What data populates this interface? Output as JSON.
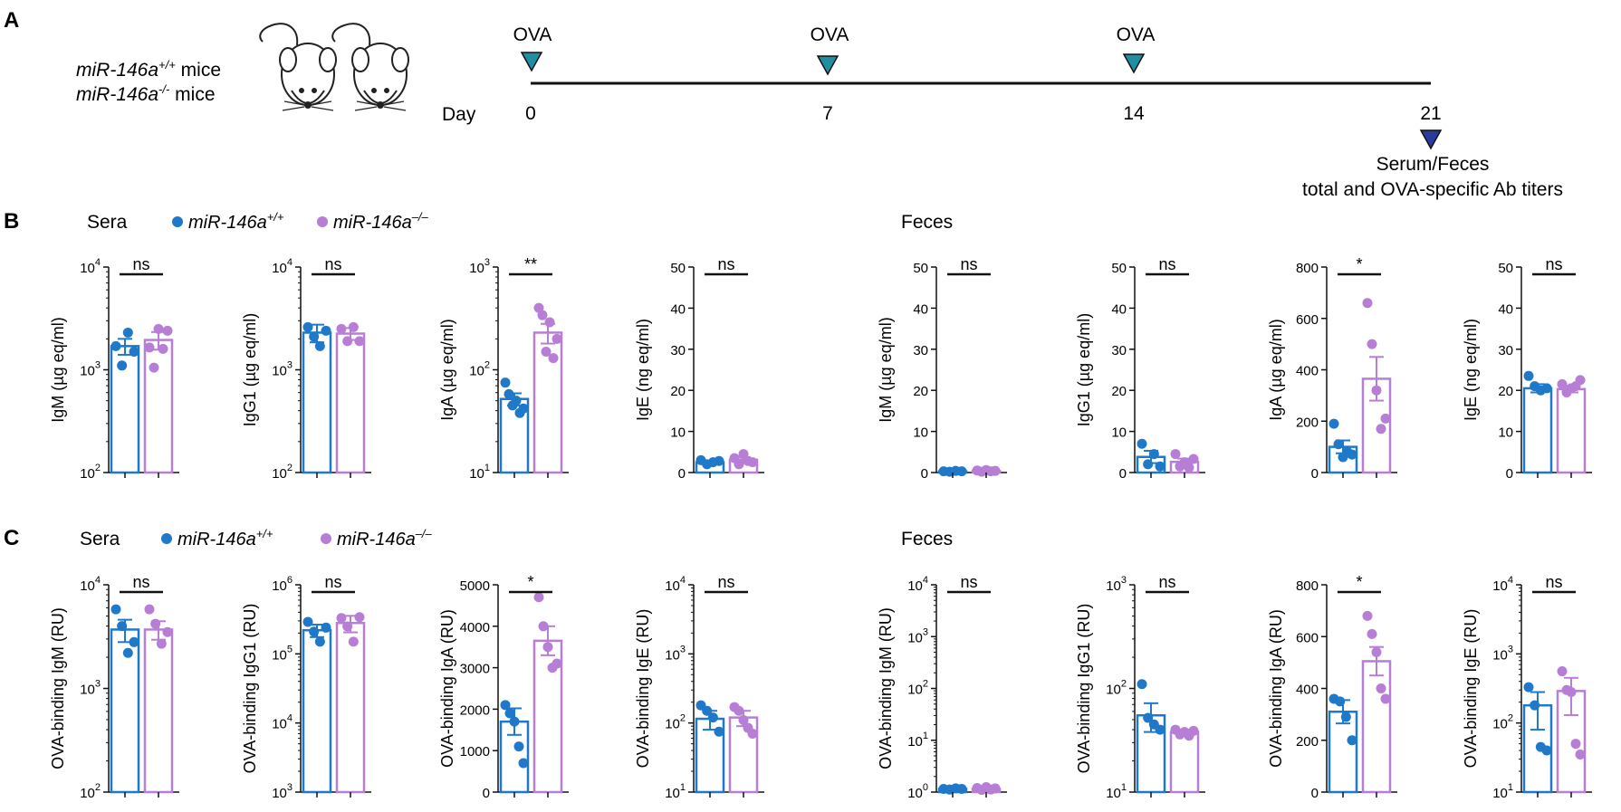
{
  "panel_letters": [
    "A",
    "B",
    "C"
  ],
  "timeline": {
    "mice_labels": [
      {
        "base": "miR-146a",
        "sup": "+/+",
        "tail": " mice"
      },
      {
        "base": "miR-146a",
        "sup": "-/-",
        "tail": "  mice"
      }
    ],
    "day_label": "Day",
    "days": [
      "0",
      "7",
      "14",
      "21"
    ],
    "event_label": "OVA",
    "end_lines": [
      "Serum/Feces",
      "total and OVA-specific Ab titers"
    ]
  },
  "colors": {
    "wt": "#1f78c8",
    "ko": "#b77ed6",
    "injection": "#1f8fa3",
    "endpoint": "#283c9e"
  },
  "rows": [
    {
      "sections": [
        "Sera",
        "Feces"
      ],
      "legend": [
        {
          "base": "miR-146a",
          "sup": "+/+"
        },
        {
          "base": "miR-146a",
          "sup": "–/–"
        }
      ]
    },
    {
      "sections": [
        "Sera",
        "Feces"
      ],
      "legend": [
        {
          "base": "miR-146a",
          "sup": "+/+"
        },
        {
          "base": "miR-146a",
          "sup": "–/–"
        }
      ]
    }
  ],
  "chart_data": [
    {
      "type": "bar",
      "row": 0,
      "col": 0,
      "scale": "log",
      "ylabel": "IgM (µg eq/ml)",
      "ylim": [
        100,
        10000
      ],
      "ticks": [
        {
          "v": 100,
          "b": "10",
          "e": "2"
        },
        {
          "v": 1000,
          "b": "10",
          "e": "3"
        },
        {
          "v": 10000,
          "b": "10",
          "e": "4"
        }
      ],
      "series": [
        {
          "name": "miR-146a+/+",
          "mean": 1700,
          "sem": 300,
          "points": [
            1700,
            1100,
            2300,
            1500
          ]
        },
        {
          "name": "miR-146a–/–",
          "mean": 1950,
          "sem": 380,
          "points": [
            1650,
            1050,
            2500,
            1600,
            2400
          ]
        }
      ],
      "sig": "ns"
    },
    {
      "type": "bar",
      "row": 0,
      "col": 1,
      "scale": "log",
      "ylabel": "IgG1 (µg eq/ml)",
      "ylim": [
        100,
        10000
      ],
      "ticks": [
        {
          "v": 100,
          "b": "10",
          "e": "2"
        },
        {
          "v": 1000,
          "b": "10",
          "e": "3"
        },
        {
          "v": 10000,
          "b": "10",
          "e": "4"
        }
      ],
      "series": [
        {
          "name": "miR-146a+/+",
          "mean": 2300,
          "sem": 450,
          "points": [
            2600,
            2100,
            1700,
            2400
          ]
        },
        {
          "name": "miR-146a–/–",
          "mean": 2250,
          "sem": 300,
          "points": [
            2500,
            1900,
            2600,
            1900
          ]
        }
      ],
      "sig": "ns"
    },
    {
      "type": "bar",
      "row": 0,
      "col": 2,
      "scale": "log",
      "ylabel": "IgA (µg eq/ml)",
      "ylim": [
        10,
        1000
      ],
      "ticks": [
        {
          "v": 10,
          "b": "10",
          "e": "1"
        },
        {
          "v": 100,
          "b": "10",
          "e": "2"
        },
        {
          "v": 1000,
          "b": "10",
          "e": "3"
        }
      ],
      "series": [
        {
          "name": "miR-146a+/+",
          "mean": 52,
          "sem": 7,
          "points": [
            75,
            58,
            45,
            50,
            38,
            42
          ]
        },
        {
          "name": "miR-146a–/–",
          "mean": 230,
          "sem": 50,
          "points": [
            400,
            340,
            150,
            290,
            130,
            200
          ]
        }
      ],
      "sig": "**"
    },
    {
      "type": "bar",
      "row": 0,
      "col": 3,
      "scale": "linear",
      "ylabel": "IgE (ng eq/ml)",
      "ylim": [
        0,
        50
      ],
      "ticks": [
        {
          "v": 0,
          "t": "0"
        },
        {
          "v": 10,
          "t": "10"
        },
        {
          "v": 20,
          "t": "20"
        },
        {
          "v": 30,
          "t": "30"
        },
        {
          "v": 40,
          "t": "40"
        },
        {
          "v": 50,
          "t": "50"
        }
      ],
      "series": [
        {
          "name": "miR-146a+/+",
          "mean": 2.5,
          "sem": 0.4,
          "points": [
            3,
            2,
            2.5,
            2.8
          ]
        },
        {
          "name": "miR-146a–/–",
          "mean": 3.1,
          "sem": 0.6,
          "points": [
            3.5,
            2,
            4.5,
            2.8,
            2.5
          ]
        }
      ],
      "sig": "ns"
    },
    {
      "type": "bar",
      "row": 0,
      "col": 4,
      "scale": "linear",
      "ylabel": "IgM (µg eq/ml)",
      "ylim": [
        0,
        50
      ],
      "ticks": [
        {
          "v": 0,
          "t": "0"
        },
        {
          "v": 10,
          "t": "10"
        },
        {
          "v": 20,
          "t": "20"
        },
        {
          "v": 30,
          "t": "30"
        },
        {
          "v": 40,
          "t": "40"
        },
        {
          "v": 50,
          "t": "50"
        }
      ],
      "series": [
        {
          "name": "miR-146a+/+",
          "mean": 0.3,
          "sem": 0.1,
          "points": [
            0.3,
            0.2,
            0.4,
            0.3
          ]
        },
        {
          "name": "miR-146a–/–",
          "mean": 0.4,
          "sem": 0.15,
          "points": [
            0.5,
            0.2,
            0.6,
            0.3,
            0.4
          ]
        }
      ],
      "sig": "ns"
    },
    {
      "type": "bar",
      "row": 0,
      "col": 5,
      "scale": "linear",
      "ylabel": "IgG1 (µg eq/ml)",
      "ylim": [
        0,
        50
      ],
      "ticks": [
        {
          "v": 0,
          "t": "0"
        },
        {
          "v": 10,
          "t": "10"
        },
        {
          "v": 20,
          "t": "20"
        },
        {
          "v": 30,
          "t": "30"
        },
        {
          "v": 40,
          "t": "40"
        },
        {
          "v": 50,
          "t": "50"
        }
      ],
      "series": [
        {
          "name": "miR-146a+/+",
          "mean": 3.8,
          "sem": 1.5,
          "points": [
            7,
            2,
            4.5,
            1.5
          ]
        },
        {
          "name": "miR-146a–/–",
          "mean": 2.6,
          "sem": 0.8,
          "points": [
            4.5,
            1.5,
            2.5,
            1.2,
            3.3
          ]
        }
      ],
      "sig": "ns"
    },
    {
      "type": "bar",
      "row": 0,
      "col": 6,
      "scale": "linear",
      "ylabel": "IgA (µg eq/ml)",
      "ylim": [
        0,
        800
      ],
      "ticks": [
        {
          "v": 0,
          "t": "0"
        },
        {
          "v": 200,
          "t": "200"
        },
        {
          "v": 400,
          "t": "400"
        },
        {
          "v": 600,
          "t": "600"
        },
        {
          "v": 800,
          "t": "800"
        }
      ],
      "series": [
        {
          "name": "miR-146a+/+",
          "mean": 100,
          "sem": 25,
          "points": [
            190,
            110,
            60,
            80,
            70
          ]
        },
        {
          "name": "miR-146a–/–",
          "mean": 365,
          "sem": 85,
          "points": [
            660,
            500,
            320,
            170,
            210
          ]
        }
      ],
      "sig": "*"
    },
    {
      "type": "bar",
      "row": 0,
      "col": 7,
      "scale": "linear",
      "ylabel": "IgE (ng eq/ml)",
      "ylim": [
        0,
        50
      ],
      "ticks": [
        {
          "v": 0,
          "t": "0"
        },
        {
          "v": 10,
          "t": "10"
        },
        {
          "v": 20,
          "t": "20"
        },
        {
          "v": 30,
          "t": "30"
        },
        {
          "v": 40,
          "t": "40"
        },
        {
          "v": 50,
          "t": "50"
        }
      ],
      "series": [
        {
          "name": "miR-146a+/+",
          "mean": 20.5,
          "sem": 1,
          "points": [
            23.5,
            21,
            20,
            20.5
          ]
        },
        {
          "name": "miR-146a–/–",
          "mean": 20.3,
          "sem": 0.8,
          "points": [
            21.5,
            19.5,
            20.5,
            21,
            22.5
          ]
        }
      ],
      "sig": "ns"
    },
    {
      "type": "bar",
      "row": 1,
      "col": 0,
      "scale": "log",
      "ylabel": "OVA-binding IgM (RU)",
      "ylim": [
        100,
        10000
      ],
      "ticks": [
        {
          "v": 100,
          "b": "10",
          "e": "2"
        },
        {
          "v": 1000,
          "b": "10",
          "e": "3"
        },
        {
          "v": 10000,
          "b": "10",
          "e": "4"
        }
      ],
      "series": [
        {
          "name": "miR-146a+/+",
          "mean": 3700,
          "sem": 900,
          "points": [
            5800,
            4000,
            2200,
            2800
          ]
        },
        {
          "name": "miR-146a–/–",
          "mean": 3700,
          "sem": 750,
          "points": [
            5800,
            4200,
            2700,
            3500
          ]
        }
      ],
      "sig": "ns"
    },
    {
      "type": "bar",
      "row": 1,
      "col": 1,
      "scale": "log",
      "ylabel": "OVA-binding IgG1 (RU)",
      "ylim": [
        1000,
        1000000
      ],
      "ticks": [
        {
          "v": 1000,
          "b": "10",
          "e": "3"
        },
        {
          "v": 10000,
          "b": "10",
          "e": "4"
        },
        {
          "v": 100000,
          "b": "10",
          "e": "5"
        },
        {
          "v": 1000000,
          "b": "10",
          "e": "6"
        }
      ],
      "series": [
        {
          "name": "miR-146a+/+",
          "mean": 220000,
          "sem": 45000,
          "points": [
            290000,
            210000,
            150000,
            240000
          ]
        },
        {
          "name": "miR-146a–/–",
          "mean": 280000,
          "sem": 75000,
          "points": [
            330000,
            250000,
            150000,
            340000
          ]
        }
      ],
      "sig": "ns"
    },
    {
      "type": "bar",
      "row": 1,
      "col": 2,
      "scale": "linear",
      "ylabel": "OVA-binding IgA (RU)",
      "ylim": [
        0,
        5000
      ],
      "ticks": [
        {
          "v": 0,
          "t": "0"
        },
        {
          "v": 1000,
          "t": "1000"
        },
        {
          "v": 2000,
          "t": "2000"
        },
        {
          "v": 3000,
          "t": "3000"
        },
        {
          "v": 4000,
          "t": "4000"
        },
        {
          "v": 5000,
          "t": "5000"
        }
      ],
      "series": [
        {
          "name": "miR-146a+/+",
          "mean": 1700,
          "sem": 320,
          "points": [
            2100,
            1900,
            1700,
            1100,
            700
          ]
        },
        {
          "name": "miR-146a–/–",
          "mean": 3650,
          "sem": 350,
          "points": [
            4700,
            4000,
            3500,
            3000,
            3100
          ]
        }
      ],
      "sig": "*"
    },
    {
      "type": "bar",
      "row": 1,
      "col": 3,
      "scale": "log",
      "ylabel": "OVA-binding IgE (RU)",
      "ylim": [
        10,
        10000
      ],
      "ticks": [
        {
          "v": 10,
          "b": "10",
          "e": "1"
        },
        {
          "v": 100,
          "b": "10",
          "e": "2"
        },
        {
          "v": 1000,
          "b": "10",
          "e": "3"
        },
        {
          "v": 10000,
          "b": "10",
          "e": "4"
        }
      ],
      "series": [
        {
          "name": "miR-146a+/+",
          "mean": 115,
          "sem": 35,
          "points": [
            180,
            150,
            120,
            75
          ]
        },
        {
          "name": "miR-146a–/–",
          "mean": 120,
          "sem": 30,
          "points": [
            170,
            150,
            110,
            85,
            70
          ]
        }
      ],
      "sig": "ns"
    },
    {
      "type": "bar",
      "row": 1,
      "col": 4,
      "scale": "log",
      "ylabel": "OVA-binding IgM (RU)",
      "ylim": [
        1,
        10000
      ],
      "ticks": [
        {
          "v": 1,
          "b": "10",
          "e": "0"
        },
        {
          "v": 10,
          "b": "10",
          "e": "1"
        },
        {
          "v": 100,
          "b": "10",
          "e": "2"
        },
        {
          "v": 1000,
          "b": "10",
          "e": "3"
        },
        {
          "v": 10000,
          "b": "10",
          "e": "4"
        }
      ],
      "series": [
        {
          "name": "miR-146a+/+",
          "mean": 1.15,
          "sem": 0.05,
          "points": [
            1.15,
            1.12,
            1.18,
            1.15
          ]
        },
        {
          "name": "miR-146a–/–",
          "mean": 1.15,
          "sem": 0.06,
          "points": [
            1.2,
            1.1,
            1.25,
            1.12,
            1.18
          ]
        }
      ],
      "sig": "ns"
    },
    {
      "type": "bar",
      "row": 1,
      "col": 5,
      "scale": "log",
      "ylabel": "OVA-binding IgG1 (RU)",
      "ylim": [
        10,
        1000
      ],
      "ticks": [
        {
          "v": 10,
          "b": "10",
          "e": "1"
        },
        {
          "v": 100,
          "b": "10",
          "e": "2"
        },
        {
          "v": 1000,
          "b": "10",
          "e": "3"
        }
      ],
      "series": [
        {
          "name": "miR-146a+/+",
          "mean": 55,
          "sem": 17,
          "points": [
            110,
            52,
            45,
            40
          ]
        },
        {
          "name": "miR-146a–/–",
          "mean": 38,
          "sem": 2,
          "points": [
            40,
            36,
            38,
            35,
            39
          ]
        }
      ],
      "sig": "ns"
    },
    {
      "type": "bar",
      "row": 1,
      "col": 6,
      "scale": "linear",
      "ylabel": "OVA-binding IgA (RU)",
      "ylim": [
        0,
        800
      ],
      "ticks": [
        {
          "v": 0,
          "t": "0"
        },
        {
          "v": 200,
          "t": "200"
        },
        {
          "v": 400,
          "t": "400"
        },
        {
          "v": 600,
          "t": "600"
        },
        {
          "v": 800,
          "t": "800"
        }
      ],
      "series": [
        {
          "name": "miR-146a+/+",
          "mean": 310,
          "sem": 45,
          "points": [
            360,
            350,
            290,
            200
          ]
        },
        {
          "name": "miR-146a–/–",
          "mean": 505,
          "sem": 55,
          "points": [
            680,
            610,
            540,
            400,
            360
          ]
        }
      ],
      "sig": "*"
    },
    {
      "type": "bar",
      "row": 1,
      "col": 7,
      "scale": "log",
      "ylabel": "OVA-binding IgE (RU)",
      "ylim": [
        10,
        10000
      ],
      "ticks": [
        {
          "v": 10,
          "b": "10",
          "e": "1"
        },
        {
          "v": 100,
          "b": "10",
          "e": "2"
        },
        {
          "v": 1000,
          "b": "10",
          "e": "3"
        },
        {
          "v": 10000,
          "b": "10",
          "e": "4"
        }
      ],
      "series": [
        {
          "name": "miR-146a+/+",
          "mean": 180,
          "sem": 100,
          "points": [
            330,
            180,
            45,
            40
          ]
        },
        {
          "name": "miR-146a–/–",
          "mean": 290,
          "sem": 160,
          "points": [
            560,
            300,
            280,
            50,
            35
          ]
        }
      ],
      "sig": "ns"
    }
  ]
}
